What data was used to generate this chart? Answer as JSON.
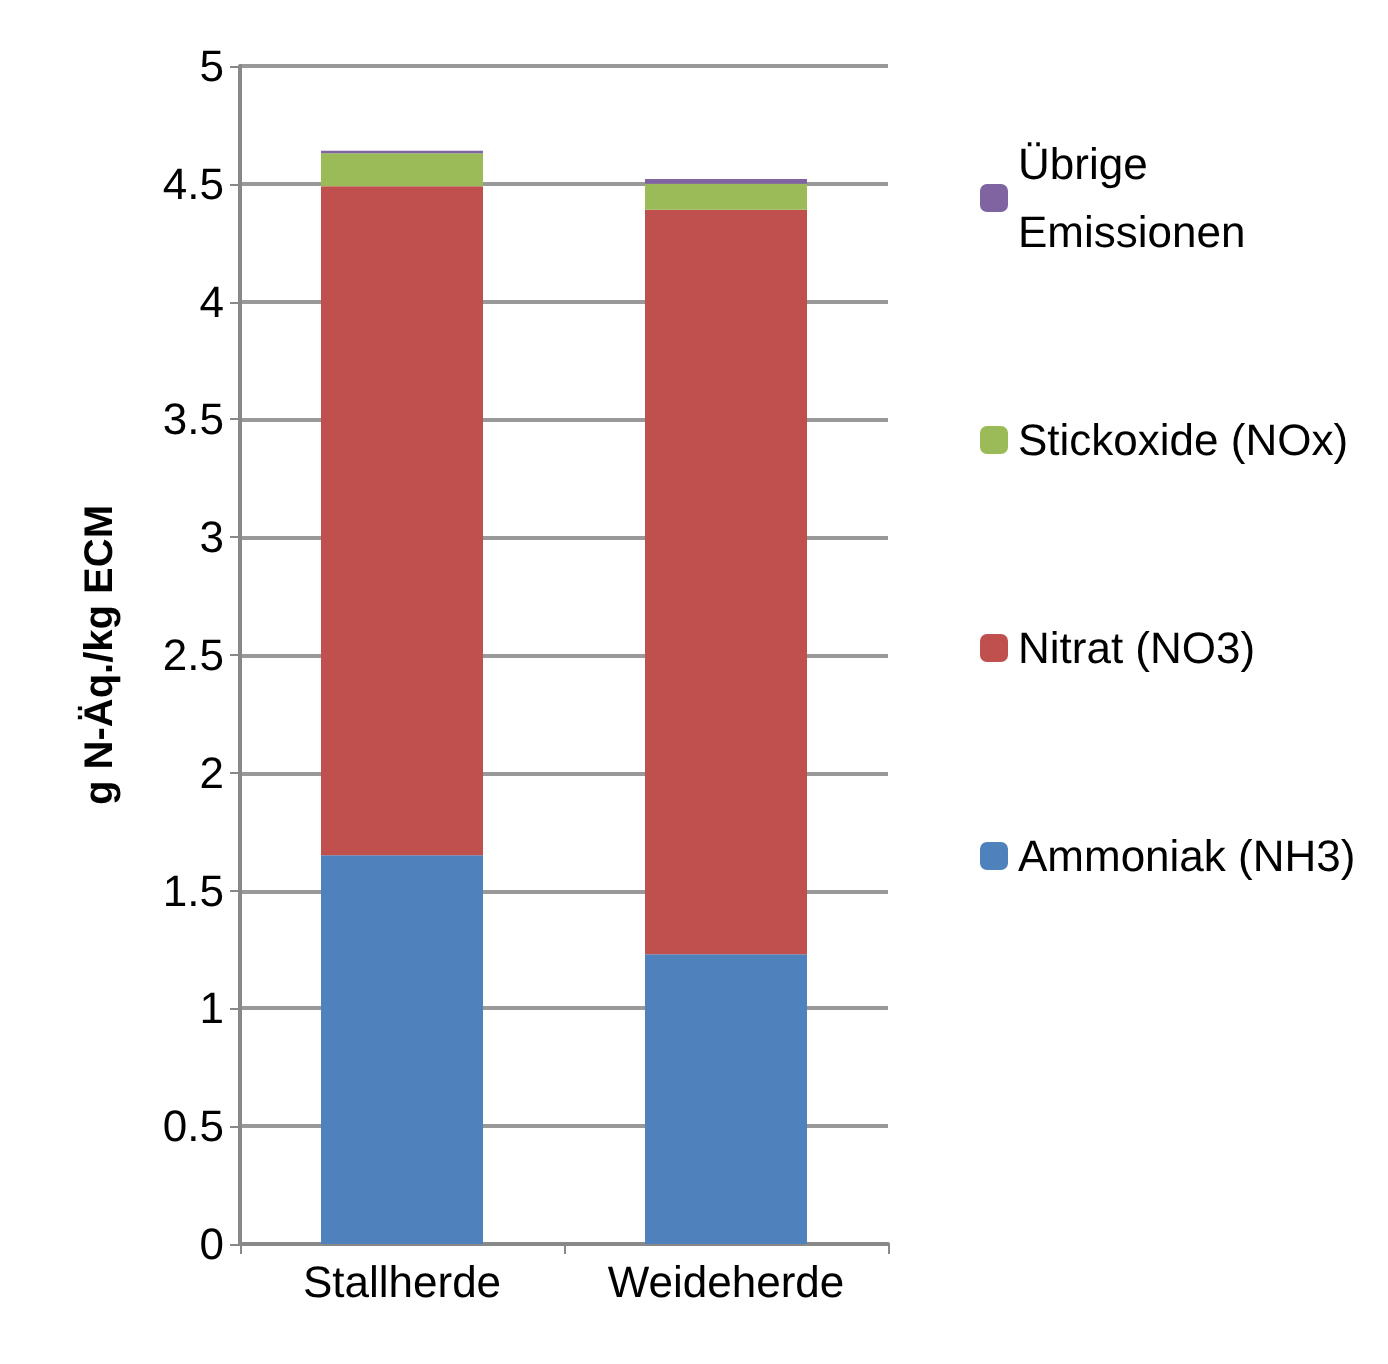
{
  "chart_data": {
    "type": "bar",
    "stacked": true,
    "ylabel": "g N-Äq./kg ECM",
    "categories": [
      "Stallherde",
      "Weideherde"
    ],
    "series": [
      {
        "name": "Ammoniak (NH3)",
        "color": "#4f81bd",
        "values": [
          1.65,
          1.23
        ]
      },
      {
        "name": "Nitrat (NO3)",
        "color": "#c0504d",
        "values": [
          2.84,
          3.16
        ]
      },
      {
        "name": "Stickoxide (NOx)",
        "color": "#9bbb59",
        "values": [
          0.14,
          0.11
        ]
      },
      {
        "name": "Übrige Emissionen",
        "color": "#8064a2",
        "values": [
          0.01,
          0.02
        ]
      }
    ],
    "ylim": [
      0,
      5
    ],
    "yticks": [
      0,
      0.5,
      1,
      1.5,
      2,
      2.5,
      3,
      3.5,
      4,
      4.5,
      5
    ],
    "grid": "y",
    "legend": "right"
  }
}
